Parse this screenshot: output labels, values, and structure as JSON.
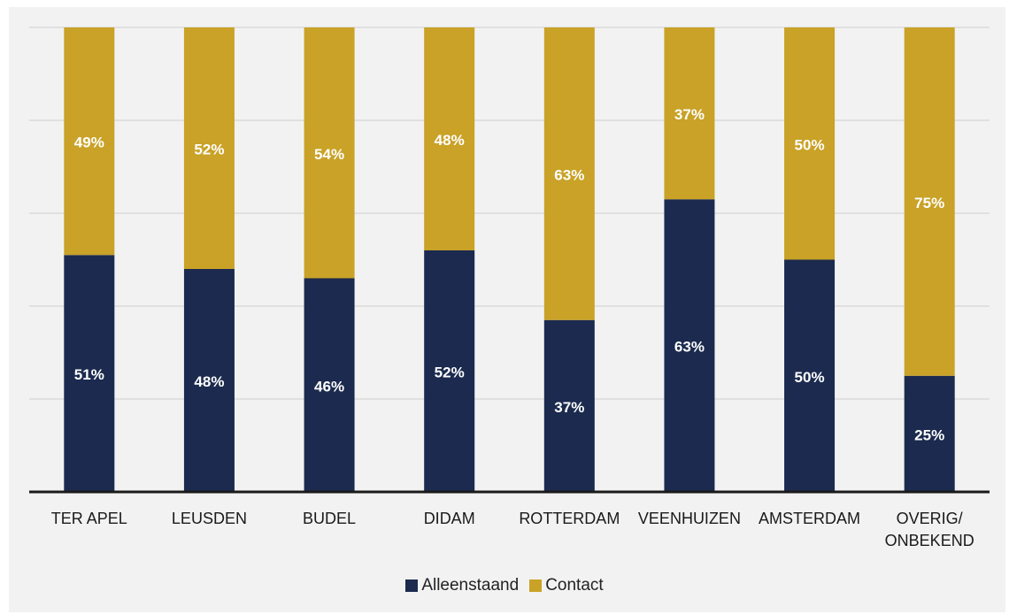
{
  "chart_data": {
    "type": "bar",
    "stacked": true,
    "percent_stacked": true,
    "categories": [
      "TER APEL",
      "LEUSDEN",
      "BUDEL",
      "DIDAM",
      "ROTTERDAM",
      "VEENHUIZEN",
      "AMSTERDAM",
      "OVERIG/\nONBEKEND"
    ],
    "series": [
      {
        "name": "Alleenstaand",
        "color": "#1b2a4e",
        "values": [
          51,
          48,
          46,
          52,
          37,
          63,
          50,
          25
        ],
        "labels": [
          "51%",
          "48%",
          "46%",
          "52%",
          "37%",
          "63%",
          "50%",
          "25%"
        ]
      },
      {
        "name": "Contact",
        "color": "#c9a227",
        "values": [
          49,
          52,
          54,
          48,
          63,
          37,
          50,
          75
        ],
        "labels": [
          "49%",
          "52%",
          "54%",
          "48%",
          "63%",
          "37%",
          "50%",
          "75%"
        ]
      }
    ],
    "ylim": [
      0,
      100
    ],
    "grid": true,
    "legend_position": "bottom"
  }
}
